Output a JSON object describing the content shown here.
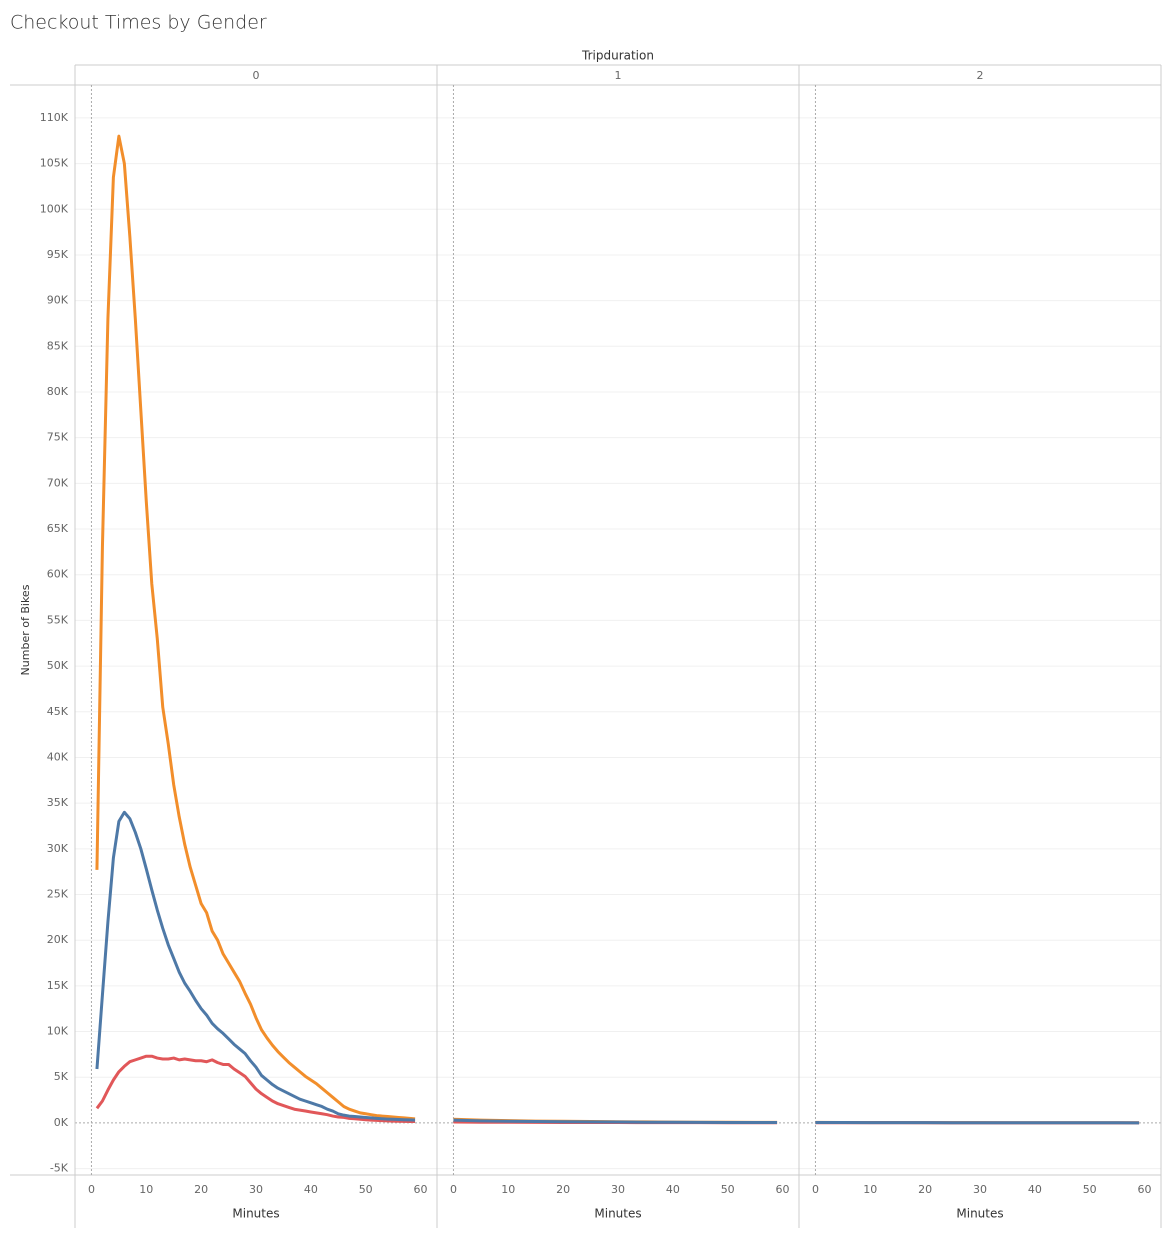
{
  "chart_data": {
    "type": "line",
    "title": "Checkout Times by Gender",
    "column_header": "Tripduration",
    "y_label": "Number of Bikes",
    "x_label": "Minutes",
    "xlim": [
      -3,
      63
    ],
    "xticks": [
      0,
      10,
      20,
      30,
      40,
      50,
      60
    ],
    "ylim": [
      -5700,
      113600
    ],
    "yticks": [
      {
        "value": -5000,
        "label": "-5K"
      },
      {
        "value": 0,
        "label": "0K"
      },
      {
        "value": 5000,
        "label": "5K"
      },
      {
        "value": 10000,
        "label": "10K"
      },
      {
        "value": 15000,
        "label": "15K"
      },
      {
        "value": 20000,
        "label": "20K"
      },
      {
        "value": 25000,
        "label": "25K"
      },
      {
        "value": 30000,
        "label": "30K"
      },
      {
        "value": 35000,
        "label": "35K"
      },
      {
        "value": 40000,
        "label": "40K"
      },
      {
        "value": 45000,
        "label": "45K"
      },
      {
        "value": 50000,
        "label": "50K"
      },
      {
        "value": 55000,
        "label": "55K"
      },
      {
        "value": 60000,
        "label": "60K"
      },
      {
        "value": 65000,
        "label": "65K"
      },
      {
        "value": 70000,
        "label": "70K"
      },
      {
        "value": 75000,
        "label": "75K"
      },
      {
        "value": 80000,
        "label": "80K"
      },
      {
        "value": 85000,
        "label": "85K"
      },
      {
        "value": 90000,
        "label": "90K"
      },
      {
        "value": 95000,
        "label": "95K"
      },
      {
        "value": 100000,
        "label": "100K"
      },
      {
        "value": 105000,
        "label": "105K"
      },
      {
        "value": 110000,
        "label": "110K"
      }
    ],
    "grid": true,
    "panels": [
      {
        "label": "0",
        "x": [
          1,
          2,
          3,
          4,
          5,
          6,
          7,
          8,
          9,
          10,
          11,
          12,
          13,
          14,
          15,
          16,
          17,
          18,
          19,
          20,
          21,
          22,
          23,
          24,
          25,
          26,
          27,
          28,
          29,
          30,
          31,
          32,
          33,
          34,
          35,
          36,
          37,
          38,
          39,
          40,
          41,
          42,
          43,
          44,
          45,
          46,
          47,
          48,
          49,
          50,
          51,
          52,
          53,
          54,
          55,
          56,
          57,
          58,
          59
        ],
        "series": [
          {
            "color": "#f28e2b",
            "values": [
              27700,
              63000,
              88000,
              103500,
              108000,
              105000,
              97000,
              88000,
              78000,
              68000,
              59000,
              53000,
              45500,
              41500,
              37000,
              33500,
              30500,
              28000,
              26000,
              24000,
              23000,
              21000,
              20000,
              18500,
              17500,
              16500,
              15500,
              14200,
              13000,
              11500,
              10200,
              9300,
              8500,
              7800,
              7200,
              6600,
              6100,
              5600,
              5100,
              4700,
              4300,
              3800,
              3300,
              2800,
              2300,
              1800,
              1500,
              1300,
              1100,
              1000,
              900,
              800,
              750,
              700,
              650,
              600,
              550,
              500,
              450
            ]
          },
          {
            "color": "#e15759",
            "values": [
              1600,
              2400,
              3600,
              4700,
              5600,
              6200,
              6700,
              6900,
              7100,
              7300,
              7300,
              7100,
              7000,
              7000,
              7100,
              6900,
              7000,
              6900,
              6800,
              6800,
              6700,
              6900,
              6600,
              6400,
              6400,
              5900,
              5500,
              5100,
              4400,
              3700,
              3200,
              2800,
              2400,
              2100,
              1900,
              1700,
              1500,
              1400,
              1300,
              1200,
              1100,
              1000,
              900,
              750,
              650,
              600,
              500,
              450,
              400,
              350,
              300,
              280,
              250,
              220,
              200,
              180,
              170,
              160,
              150
            ]
          },
          {
            "color": "#4e79a7",
            "values": [
              5900,
              14000,
              22000,
              29000,
              33000,
              34000,
              33300,
              31800,
              30000,
              27800,
              25500,
              23300,
              21300,
              19500,
              18000,
              16500,
              15300,
              14400,
              13400,
              12500,
              11800,
              10900,
              10300,
              9800,
              9200,
              8600,
              8100,
              7600,
              6800,
              6100,
              5200,
              4700,
              4200,
              3800,
              3500,
              3200,
              2900,
              2600,
              2400,
              2200,
              2000,
              1800,
              1500,
              1300,
              1000,
              850,
              750,
              700,
              650,
              600,
              550,
              500,
              450,
              420,
              400,
              380,
              350,
              330,
              300
            ]
          }
        ]
      },
      {
        "label": "1",
        "x": [
          0,
          5,
          10,
          15,
          20,
          25,
          30,
          35,
          40,
          45,
          50,
          55,
          59
        ],
        "series": [
          {
            "color": "#f28e2b",
            "values": [
              400,
              300,
              250,
              200,
              180,
              150,
              130,
              110,
              90,
              80,
              70,
              60,
              55
            ]
          },
          {
            "color": "#e15759",
            "values": [
              100,
              80,
              70,
              60,
              50,
              45,
              40,
              35,
              30,
              28,
              25,
              22,
              20
            ]
          },
          {
            "color": "#4e79a7",
            "values": [
              300,
              220,
              180,
              150,
              130,
              110,
              95,
              80,
              70,
              60,
              50,
              45,
              40
            ]
          }
        ]
      },
      {
        "label": "2",
        "x": [
          0,
          5,
          10,
          15,
          20,
          25,
          30,
          35,
          40,
          45,
          50,
          55,
          59
        ],
        "series": [
          {
            "color": "#f28e2b",
            "values": [
              60,
              50,
              45,
              40,
              35,
              30,
              28,
              25,
              22,
              20,
              18,
              16,
              15
            ]
          },
          {
            "color": "#e15759",
            "values": [
              20,
              18,
              15,
              14,
              12,
              10,
              9,
              8,
              7,
              6,
              5,
              4,
              4
            ]
          },
          {
            "color": "#4e79a7",
            "values": [
              50,
              40,
              35,
              30,
              28,
              25,
              22,
              20,
              18,
              16,
              14,
              12,
              10
            ]
          }
        ]
      }
    ]
  }
}
